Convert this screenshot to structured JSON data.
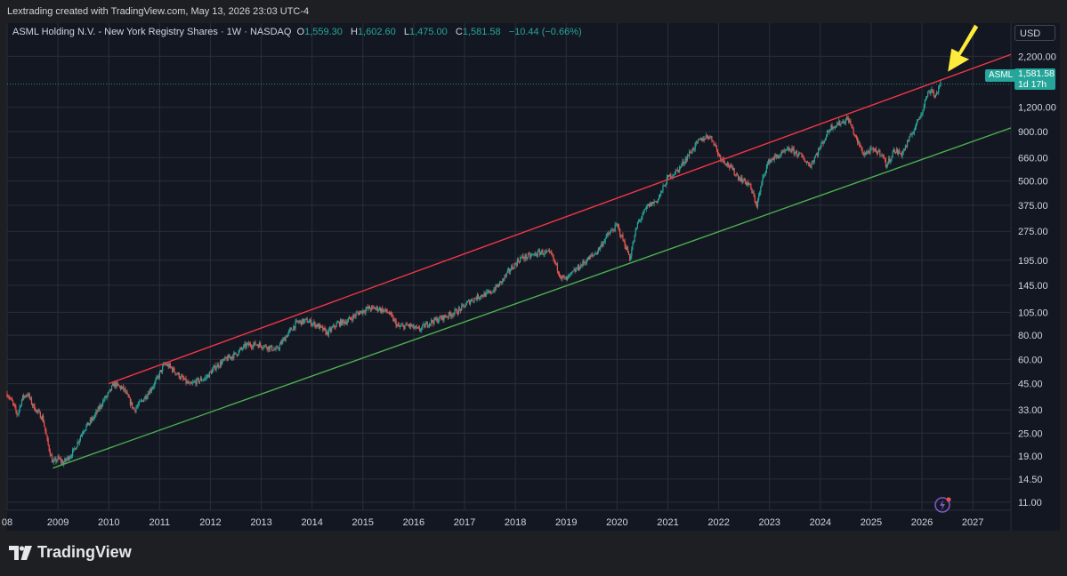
{
  "header": {
    "attribution": "Lextrading created with TradingView.com, May 13, 2026 23:03 UTC-4"
  },
  "legend": {
    "symbol_line": "ASML Holding N.V. - New York Registry Shares · 1W · NASDAQ",
    "o_label": "O",
    "o_value": "1,559.30",
    "h_label": "H",
    "h_value": "1,602.60",
    "l_label": "L",
    "l_value": "1,475.00",
    "c_label": "C",
    "c_value": "1,581.58",
    "change": "−10.44 (−0.66%)"
  },
  "price_scale": {
    "currency": "USD",
    "symbol_tag": "ASML",
    "last_price": "1,581.58",
    "countdown": "1d 17h"
  },
  "footer": {
    "brand": "TradingView"
  },
  "colors": {
    "up": "#26a69a",
    "down": "#ef5350",
    "upper_channel": "#f23645",
    "lower_channel": "#4caf50",
    "arrow": "#ffeb3b",
    "background": "#131722",
    "grid": "#2a2e39"
  },
  "chart_data": {
    "type": "candlestick",
    "scale": "log",
    "interval": "1W",
    "x_ticks": [
      "08",
      "2009",
      "2010",
      "2011",
      "2012",
      "2013",
      "2014",
      "2015",
      "2016",
      "2017",
      "2018",
      "2019",
      "2020",
      "2021",
      "2022",
      "2023",
      "2024",
      "2025",
      "2026",
      "2027"
    ],
    "x_range": [
      2008.0,
      2027.75
    ],
    "y_ticks": [
      "2,200.00",
      "1,200.00",
      "900.00",
      "660.00",
      "500.00",
      "375.00",
      "275.00",
      "195.00",
      "145.00",
      "105.00",
      "80.00",
      "60.00",
      "45.00",
      "33.00",
      "25.00",
      "19.00",
      "14.50",
      "11.00"
    ],
    "y_range": [
      10,
      3000
    ],
    "price_path": [
      [
        2008.0,
        40
      ],
      [
        2008.1,
        36
      ],
      [
        2008.2,
        31
      ],
      [
        2008.3,
        38
      ],
      [
        2008.4,
        40
      ],
      [
        2008.5,
        35
      ],
      [
        2008.6,
        32
      ],
      [
        2008.7,
        30
      ],
      [
        2008.8,
        22
      ],
      [
        2008.9,
        17.5
      ],
      [
        2009.0,
        18.5
      ],
      [
        2009.1,
        17.5
      ],
      [
        2009.3,
        20
      ],
      [
        2009.5,
        26
      ],
      [
        2009.7,
        30
      ],
      [
        2009.9,
        37
      ],
      [
        2010.0,
        40
      ],
      [
        2010.1,
        45
      ],
      [
        2010.3,
        42
      ],
      [
        2010.4,
        37
      ],
      [
        2010.5,
        33
      ],
      [
        2010.7,
        38
      ],
      [
        2010.9,
        45
      ],
      [
        2011.1,
        57
      ],
      [
        2011.2,
        55
      ],
      [
        2011.4,
        49
      ],
      [
        2011.6,
        44
      ],
      [
        2011.7,
        46
      ],
      [
        2011.9,
        48
      ],
      [
        2012.1,
        55
      ],
      [
        2012.3,
        60
      ],
      [
        2012.5,
        64
      ],
      [
        2012.7,
        71
      ],
      [
        2012.9,
        72
      ],
      [
        2013.1,
        70
      ],
      [
        2013.3,
        67
      ],
      [
        2013.5,
        80
      ],
      [
        2013.7,
        93
      ],
      [
        2013.9,
        95
      ],
      [
        2014.1,
        90
      ],
      [
        2014.3,
        82
      ],
      [
        2014.5,
        92
      ],
      [
        2014.7,
        95
      ],
      [
        2014.9,
        104
      ],
      [
        2015.1,
        110
      ],
      [
        2015.3,
        110
      ],
      [
        2015.5,
        105
      ],
      [
        2015.7,
        88
      ],
      [
        2015.9,
        90
      ],
      [
        2016.1,
        85
      ],
      [
        2016.3,
        93
      ],
      [
        2016.5,
        97
      ],
      [
        2016.7,
        102
      ],
      [
        2016.9,
        108
      ],
      [
        2017.1,
        120
      ],
      [
        2017.3,
        128
      ],
      [
        2017.5,
        132
      ],
      [
        2017.7,
        148
      ],
      [
        2017.9,
        175
      ],
      [
        2018.1,
        200
      ],
      [
        2018.3,
        205
      ],
      [
        2018.5,
        215
      ],
      [
        2018.7,
        210
      ],
      [
        2018.9,
        160
      ],
      [
        2019.0,
        155
      ],
      [
        2019.2,
        175
      ],
      [
        2019.4,
        195
      ],
      [
        2019.6,
        215
      ],
      [
        2019.8,
        260
      ],
      [
        2020.0,
        295
      ],
      [
        2020.2,
        220
      ],
      [
        2020.25,
        200
      ],
      [
        2020.4,
        300
      ],
      [
        2020.6,
        370
      ],
      [
        2020.8,
        400
      ],
      [
        2021.0,
        520
      ],
      [
        2021.2,
        570
      ],
      [
        2021.4,
        680
      ],
      [
        2021.6,
        800
      ],
      [
        2021.8,
        860
      ],
      [
        2021.9,
        800
      ],
      [
        2022.0,
        680
      ],
      [
        2022.2,
        600
      ],
      [
        2022.4,
        520
      ],
      [
        2022.6,
        480
      ],
      [
        2022.75,
        375
      ],
      [
        2022.9,
        560
      ],
      [
        2023.0,
        640
      ],
      [
        2023.2,
        680
      ],
      [
        2023.4,
        730
      ],
      [
        2023.6,
        680
      ],
      [
        2023.8,
        600
      ],
      [
        2024.0,
        750
      ],
      [
        2024.2,
        950
      ],
      [
        2024.4,
        1000
      ],
      [
        2024.55,
        1050
      ],
      [
        2024.7,
        830
      ],
      [
        2024.85,
        690
      ],
      [
        2025.0,
        720
      ],
      [
        2025.2,
        700
      ],
      [
        2025.3,
        600
      ],
      [
        2025.45,
        720
      ],
      [
        2025.6,
        690
      ],
      [
        2025.75,
        820
      ],
      [
        2025.9,
        1000
      ],
      [
        2026.0,
        1150
      ],
      [
        2026.1,
        1400
      ],
      [
        2026.2,
        1500
      ],
      [
        2026.25,
        1350
      ],
      [
        2026.3,
        1450
      ],
      [
        2026.37,
        1581.58
      ]
    ],
    "channel_lines": [
      {
        "name": "",
        "points": [
          [
            2010.0,
            45
          ],
          [
            2027.75,
            2250
          ]
        ]
      },
      {
        "name": "",
        "points": [
          [
            2008.9,
            16.5
          ],
          [
            2027.75,
            940
          ]
        ]
      }
    ]
  }
}
